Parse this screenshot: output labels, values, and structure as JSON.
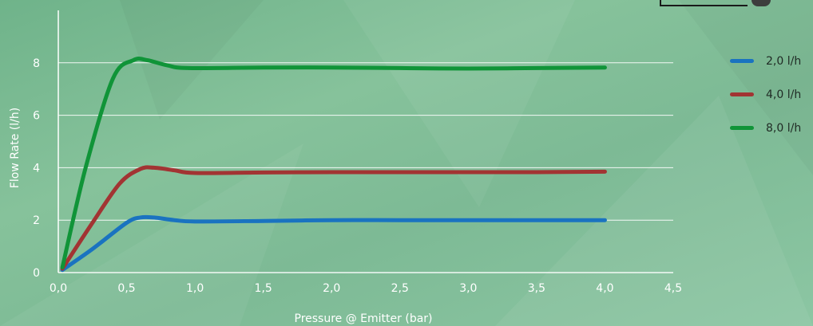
{
  "chart_data": {
    "type": "line",
    "xlabel": "Pressure @ Emitter (bar)",
    "ylabel": "Flow Rate (l/h)",
    "xlim": [
      0,
      4.5
    ],
    "ylim": [
      0,
      10
    ],
    "x_ticks": [
      "0,0",
      "0,5",
      "1,0",
      "1,5",
      "2,0",
      "2,5",
      "3,0",
      "3,5",
      "4,0",
      "4,5"
    ],
    "x_tick_values": [
      0,
      0.5,
      1.0,
      1.5,
      2.0,
      2.5,
      3.0,
      3.5,
      4.0,
      4.5
    ],
    "y_ticks": [
      "0",
      "2",
      "4",
      "6",
      "8"
    ],
    "y_tick_values": [
      0,
      2,
      4,
      6,
      8
    ],
    "grid": "horizontal",
    "legend_position": "right",
    "series": [
      {
        "name": "2,0 l/h",
        "color": "#1a73c0",
        "x": [
          0.03,
          0.25,
          0.5,
          0.6,
          0.7,
          0.85,
          1.0,
          1.5,
          2.0,
          2.5,
          3.0,
          3.5,
          4.0
        ],
        "y": [
          0.1,
          0.9,
          1.9,
          2.1,
          2.1,
          2.0,
          1.95,
          1.97,
          2.0,
          2.0,
          2.0,
          2.0,
          2.0
        ]
      },
      {
        "name": "4,0 l/h",
        "color": "#a23433",
        "x": [
          0.03,
          0.25,
          0.45,
          0.6,
          0.7,
          0.85,
          1.0,
          1.5,
          2.0,
          2.5,
          3.0,
          3.5,
          4.0
        ],
        "y": [
          0.15,
          1.9,
          3.4,
          3.95,
          4.0,
          3.9,
          3.8,
          3.82,
          3.83,
          3.83,
          3.83,
          3.83,
          3.85
        ]
      },
      {
        "name": "8,0 l/h",
        "color": "#109438",
        "x": [
          0.03,
          0.2,
          0.4,
          0.55,
          0.65,
          0.8,
          0.95,
          1.5,
          2.0,
          2.5,
          3.0,
          3.5,
          4.0
        ],
        "y": [
          0.2,
          4.0,
          7.4,
          8.1,
          8.1,
          7.9,
          7.8,
          7.82,
          7.82,
          7.8,
          7.78,
          7.8,
          7.82
        ]
      }
    ]
  }
}
